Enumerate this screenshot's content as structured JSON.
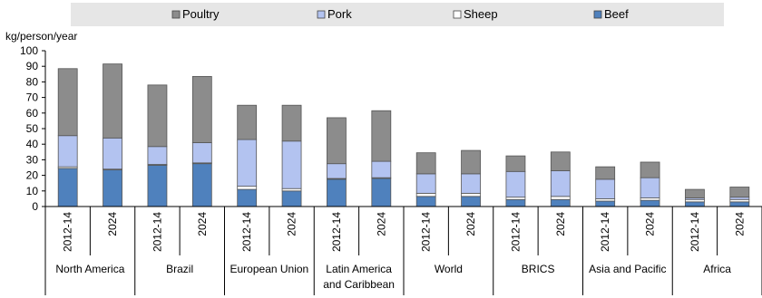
{
  "chart_data": {
    "type": "bar",
    "stacked": true,
    "ylabel": "kg/person/year",
    "ylim": [
      0,
      100
    ],
    "yticks": [
      0,
      10,
      20,
      30,
      40,
      50,
      60,
      70,
      80,
      90,
      100
    ],
    "legend_position": "top",
    "groups": [
      "North America",
      "Brazil",
      "European Union",
      "Latin America and Caribbean",
      "World",
      "BRICS",
      "Asia and Pacific",
      "Africa"
    ],
    "group_lines": [
      [
        "North America"
      ],
      [
        "Brazil"
      ],
      [
        "European Union"
      ],
      [
        "Latin America",
        "and Caribbean"
      ],
      [
        "World"
      ],
      [
        "BRICS"
      ],
      [
        "Asia and Pacific"
      ],
      [
        "Africa"
      ]
    ],
    "periods": [
      "2012-14",
      "2024"
    ],
    "legend_order": [
      "Poultry",
      "Pork",
      "Sheep",
      "Beef"
    ],
    "series": [
      {
        "name": "Beef",
        "color": "#4f81bd",
        "values": [
          24.5,
          23.5,
          26.5,
          27.5,
          11,
          10,
          17.5,
          18,
          6.5,
          6.5,
          4.5,
          4.5,
          3.5,
          4,
          3,
          3
        ]
      },
      {
        "name": "Sheep",
        "color": "#ffffff",
        "values": [
          1,
          0.5,
          0.5,
          0.5,
          2,
          1.5,
          0.5,
          0.5,
          2,
          2,
          1.5,
          2,
          1.5,
          1.5,
          1.5,
          1.5
        ]
      },
      {
        "name": "Pork",
        "color": "#b3c3f0",
        "values": [
          20,
          20,
          11.5,
          13,
          30,
          30.5,
          9.5,
          10.5,
          12.5,
          12.5,
          16.5,
          16.5,
          12.5,
          13,
          1,
          1.5
        ]
      },
      {
        "name": "Poultry",
        "color": "#8c8c8c",
        "values": [
          43,
          47.5,
          39.5,
          42.5,
          22,
          23,
          29.5,
          32.5,
          13.5,
          15,
          10,
          12,
          8,
          10,
          5.5,
          6.5
        ]
      }
    ]
  }
}
